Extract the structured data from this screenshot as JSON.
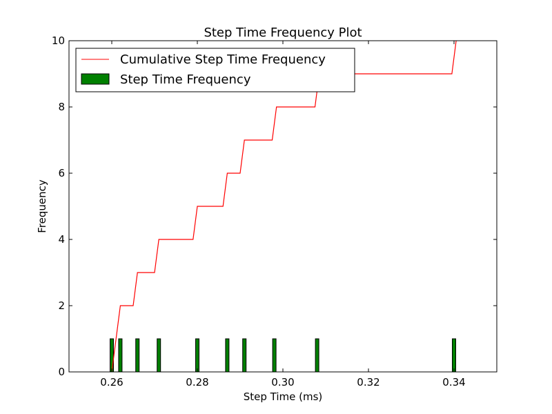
{
  "chart_data": {
    "type": "bar",
    "title": "Step Time Frequency Plot",
    "xlabel": "Step Time (ms)",
    "ylabel": "Frequency",
    "xlim": [
      0.25,
      0.35
    ],
    "ylim": [
      0,
      10
    ],
    "xticks": [
      0.26,
      0.28,
      0.3,
      0.32,
      0.34
    ],
    "xtick_labels": [
      "0.26",
      "0.28",
      "0.30",
      "0.32",
      "0.34"
    ],
    "yticks": [
      0,
      2,
      4,
      6,
      8,
      10
    ],
    "ytick_labels": [
      "0",
      "2",
      "4",
      "6",
      "8",
      "10"
    ],
    "grid": false,
    "legend_placement": "upper-left",
    "series": [
      {
        "name": "Cumulative Step Time Frequency",
        "type": "line",
        "color": "#ff0000",
        "x": [
          0.26,
          0.261,
          0.262,
          0.265,
          0.266,
          0.27,
          0.271,
          0.279,
          0.28,
          0.286,
          0.287,
          0.29,
          0.291,
          0.2975,
          0.2985,
          0.3075,
          0.3085,
          0.3395,
          0.3405
        ],
        "y": [
          0,
          1,
          2,
          2,
          3,
          3,
          4,
          4,
          5,
          5,
          6,
          6,
          7,
          7,
          8,
          8,
          9,
          9,
          10
        ]
      },
      {
        "name": "Step Time Frequency",
        "type": "bar",
        "color": "#008000",
        "edge_color": "#000000",
        "x": [
          0.26,
          0.262,
          0.266,
          0.271,
          0.28,
          0.287,
          0.291,
          0.298,
          0.308,
          0.34
        ],
        "values": [
          1,
          1,
          1,
          1,
          1,
          1,
          1,
          1,
          1,
          1
        ]
      }
    ]
  }
}
